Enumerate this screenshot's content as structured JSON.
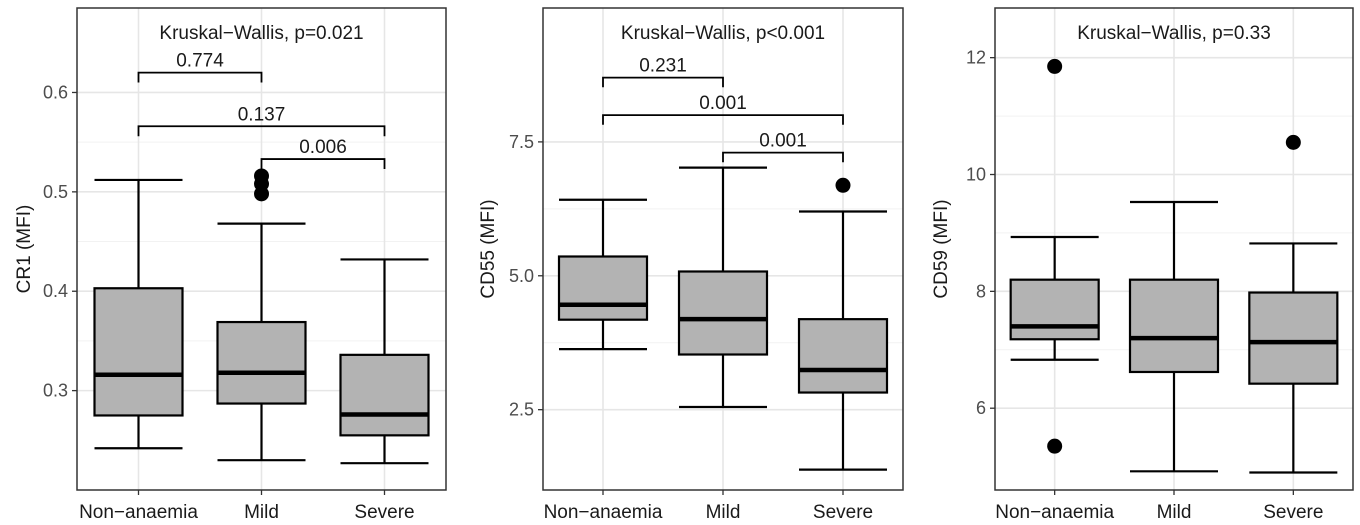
{
  "chart_data": [
    {
      "type": "box",
      "title": "",
      "test_label": "Kruskal−Wallis, p=0.021",
      "xlabel": "",
      "ylabel": "CR1 (MFI)",
      "categories": [
        "Non−anaemia",
        "Mild",
        "Severe"
      ],
      "yticks": [
        0.3,
        0.4,
        0.5,
        0.6
      ],
      "ytick_labels": [
        "0.3",
        "0.4",
        "0.5",
        "0.6"
      ],
      "ylim": [
        0.2,
        0.685
      ],
      "grid": true,
      "boxes": [
        {
          "category": "Non−anaemia",
          "whisker_low": 0.242,
          "q1": 0.275,
          "median": 0.316,
          "q3": 0.403,
          "whisker_high": 0.512,
          "outliers": []
        },
        {
          "category": "Mild",
          "whisker_low": 0.23,
          "q1": 0.287,
          "median": 0.318,
          "q3": 0.369,
          "whisker_high": 0.468,
          "outliers": [
            0.498,
            0.508,
            0.516
          ]
        },
        {
          "category": "Severe",
          "whisker_low": 0.227,
          "q1": 0.255,
          "median": 0.276,
          "q3": 0.336,
          "whisker_high": 0.432,
          "outliers": []
        }
      ],
      "comparisons": [
        {
          "groups": [
            "Non−anaemia",
            "Mild"
          ],
          "label": "0.774",
          "y": 0.62,
          "tip": 0.01
        },
        {
          "groups": [
            "Non−anaemia",
            "Severe"
          ],
          "label": "0.137",
          "y": 0.566,
          "tip": 0.01
        },
        {
          "groups": [
            "Mild",
            "Severe"
          ],
          "label": "0.006",
          "y": 0.533,
          "tip": 0.01
        }
      ]
    },
    {
      "type": "box",
      "title": "",
      "test_label": "Kruskal−Wallis, p<0.001",
      "xlabel": "",
      "ylabel": "CD55 (MFI)",
      "categories": [
        "Non−anaemia",
        "Mild",
        "Severe"
      ],
      "yticks": [
        2.5,
        5.0,
        7.5
      ],
      "ytick_labels": [
        "2.5",
        "5.0",
        "7.5"
      ],
      "ylim": [
        1.0,
        10.0
      ],
      "grid": true,
      "boxes": [
        {
          "category": "Non−anaemia",
          "whisker_low": 3.63,
          "q1": 4.18,
          "median": 4.46,
          "q3": 5.36,
          "whisker_high": 6.42,
          "outliers": []
        },
        {
          "category": "Mild",
          "whisker_low": 2.55,
          "q1": 3.53,
          "median": 4.19,
          "q3": 5.08,
          "whisker_high": 7.02,
          "outliers": []
        },
        {
          "category": "Severe",
          "whisker_low": 1.38,
          "q1": 2.82,
          "median": 3.24,
          "q3": 4.19,
          "whisker_high": 6.2,
          "outliers": [
            6.69
          ]
        }
      ],
      "comparisons": [
        {
          "groups": [
            "Non−anaemia",
            "Mild"
          ],
          "label": "0.231",
          "y": 8.7,
          "tip": 0.18
        },
        {
          "groups": [
            "Non−anaemia",
            "Severe"
          ],
          "label": "0.001",
          "y": 8.0,
          "tip": 0.18
        },
        {
          "groups": [
            "Mild",
            "Severe"
          ],
          "label": "0.001",
          "y": 7.3,
          "tip": 0.18
        }
      ]
    },
    {
      "type": "box",
      "title": "",
      "test_label": "Kruskal−Wallis, p=0.33",
      "xlabel": "",
      "ylabel": "CD59 (MFI)",
      "categories": [
        "Non−anaemia",
        "Mild",
        "Severe"
      ],
      "yticks": [
        6,
        8,
        10,
        12
      ],
      "ytick_labels": [
        "6",
        "8",
        "10",
        "12"
      ],
      "ylim": [
        4.6,
        12.85
      ],
      "grid": true,
      "boxes": [
        {
          "category": "Non−anaemia",
          "whisker_low": 6.83,
          "q1": 7.18,
          "median": 7.4,
          "q3": 8.2,
          "whisker_high": 8.93,
          "outliers": [
            11.85,
            5.35
          ]
        },
        {
          "category": "Mild",
          "whisker_low": 4.92,
          "q1": 6.62,
          "median": 7.2,
          "q3": 8.2,
          "whisker_high": 9.53,
          "outliers": []
        },
        {
          "category": "Severe",
          "whisker_low": 4.9,
          "q1": 6.42,
          "median": 7.13,
          "q3": 7.98,
          "whisker_high": 8.82,
          "outliers": [
            10.55
          ]
        }
      ],
      "comparisons": []
    }
  ],
  "colors": {
    "box_fill": "#b3b3b3",
    "stroke": "#000000",
    "grid": "#e6e6e6",
    "tick_text": "#4d4d4d"
  }
}
